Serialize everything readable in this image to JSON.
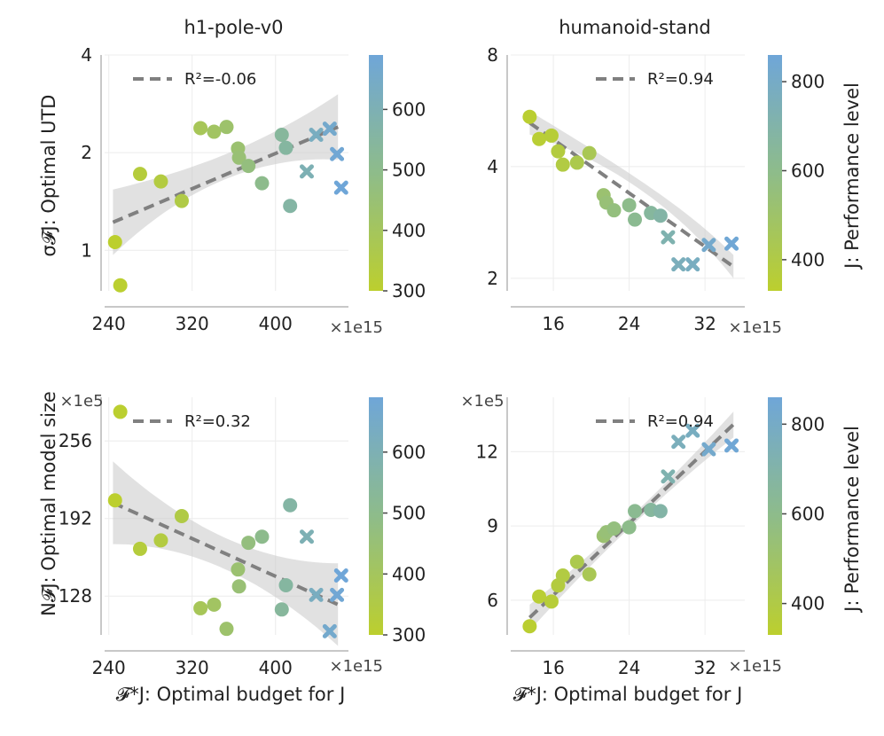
{
  "colors": {
    "low": "#bccf2e",
    "mid": "#8ebc8a",
    "high": "#6fa6d8",
    "fit": "#808080",
    "band": "#c8c8c8",
    "grid": "#ececec",
    "axis": "#c8c8c8"
  },
  "labels": {
    "xlabel": "𝓕*J: Optimal budget for J",
    "ylabel_top": "σ𝓕J: Optimal UTD",
    "ylabel_bottom": "N𝓕J: Optimal model size",
    "cbar_label": "J: Performance level",
    "x_multiplier": "×1e15",
    "y_multiplier": "×1e5"
  },
  "chart_data": [
    {
      "title": "h1-pole-v0",
      "type": "scatter",
      "yscale": "log",
      "xlim": [
        236,
        470
      ],
      "ylim": [
        0.75,
        4
      ],
      "xticks": [
        240,
        320,
        400
      ],
      "yticks": [
        1,
        2,
        4
      ],
      "fit": {
        "label": "R²=-0.06",
        "start": [
          244,
          1.22
        ],
        "end": [
          460,
          2.4
        ]
      },
      "colorbar": {
        "range": [
          300,
          690
        ],
        "ticks": [
          300,
          400,
          500,
          600
        ]
      },
      "points": [
        {
          "x": 246,
          "y": 1.06,
          "perf": 300,
          "marker": "circle"
        },
        {
          "x": 251,
          "y": 0.78,
          "perf": 305,
          "marker": "circle"
        },
        {
          "x": 270,
          "y": 1.72,
          "perf": 330,
          "marker": "circle"
        },
        {
          "x": 290,
          "y": 1.63,
          "perf": 340,
          "marker": "circle"
        },
        {
          "x": 310,
          "y": 1.42,
          "perf": 350,
          "marker": "circle"
        },
        {
          "x": 328,
          "y": 2.38,
          "perf": 390,
          "marker": "circle"
        },
        {
          "x": 341,
          "y": 2.32,
          "perf": 410,
          "marker": "circle"
        },
        {
          "x": 353,
          "y": 2.4,
          "perf": 430,
          "marker": "circle"
        },
        {
          "x": 364,
          "y": 2.06,
          "perf": 440,
          "marker": "circle"
        },
        {
          "x": 365,
          "y": 1.93,
          "perf": 450,
          "marker": "circle"
        },
        {
          "x": 374,
          "y": 1.82,
          "perf": 470,
          "marker": "circle"
        },
        {
          "x": 387,
          "y": 1.61,
          "perf": 500,
          "marker": "circle"
        },
        {
          "x": 406,
          "y": 2.27,
          "perf": 540,
          "marker": "circle"
        },
        {
          "x": 410,
          "y": 2.07,
          "perf": 550,
          "marker": "circle"
        },
        {
          "x": 414,
          "y": 1.37,
          "perf": 560,
          "marker": "circle"
        },
        {
          "x": 430,
          "y": 1.75,
          "perf": 600,
          "marker": "cross"
        },
        {
          "x": 439,
          "y": 2.27,
          "perf": 630,
          "marker": "cross"
        },
        {
          "x": 452,
          "y": 2.37,
          "perf": 660,
          "marker": "cross"
        },
        {
          "x": 459,
          "y": 1.98,
          "perf": 680,
          "marker": "cross"
        },
        {
          "x": 463,
          "y": 1.56,
          "perf": 690,
          "marker": "cross"
        }
      ]
    },
    {
      "title": "humanoid-stand",
      "type": "scatter",
      "yscale": "log",
      "xlim": [
        11.5,
        36.2
      ],
      "ylim": [
        1.85,
        8
      ],
      "xticks": [
        16,
        24,
        32
      ],
      "yticks": [
        2,
        4,
        8
      ],
      "fit": {
        "label": "R²=0.94",
        "start": [
          13.5,
          5.25
        ],
        "end": [
          35,
          2.15
        ]
      },
      "colorbar": {
        "range": [
          330,
          860
        ],
        "ticks": [
          400,
          600,
          800
        ]
      },
      "points": [
        {
          "x": 13.5,
          "y": 5.45,
          "perf": 340,
          "marker": "circle"
        },
        {
          "x": 14.5,
          "y": 4.75,
          "perf": 350,
          "marker": "circle"
        },
        {
          "x": 15.8,
          "y": 4.85,
          "perf": 360,
          "marker": "circle"
        },
        {
          "x": 16.5,
          "y": 4.4,
          "perf": 380,
          "marker": "circle"
        },
        {
          "x": 17.0,
          "y": 4.05,
          "perf": 390,
          "marker": "circle"
        },
        {
          "x": 18.5,
          "y": 4.1,
          "perf": 420,
          "marker": "circle"
        },
        {
          "x": 19.8,
          "y": 4.35,
          "perf": 440,
          "marker": "circle"
        },
        {
          "x": 21.3,
          "y": 3.35,
          "perf": 520,
          "marker": "circle"
        },
        {
          "x": 21.6,
          "y": 3.2,
          "perf": 540,
          "marker": "circle"
        },
        {
          "x": 22.4,
          "y": 3.05,
          "perf": 560,
          "marker": "circle"
        },
        {
          "x": 24.0,
          "y": 3.15,
          "perf": 600,
          "marker": "circle"
        },
        {
          "x": 24.6,
          "y": 2.88,
          "perf": 620,
          "marker": "circle"
        },
        {
          "x": 26.3,
          "y": 3.0,
          "perf": 660,
          "marker": "circle"
        },
        {
          "x": 27.3,
          "y": 2.95,
          "perf": 690,
          "marker": "circle"
        },
        {
          "x": 28.1,
          "y": 2.58,
          "perf": 720,
          "marker": "cross"
        },
        {
          "x": 29.2,
          "y": 2.18,
          "perf": 760,
          "marker": "cross"
        },
        {
          "x": 30.7,
          "y": 2.18,
          "perf": 780,
          "marker": "cross"
        },
        {
          "x": 32.4,
          "y": 2.46,
          "perf": 820,
          "marker": "cross"
        },
        {
          "x": 34.8,
          "y": 2.48,
          "perf": 850,
          "marker": "cross"
        }
      ]
    },
    {
      "title": "",
      "type": "scatter",
      "yscale": "linear",
      "xlim": [
        236,
        470
      ],
      "ylim": [
        96,
        292
      ],
      "xticks": [
        240,
        320,
        400
      ],
      "yticks": [
        128,
        192,
        256
      ],
      "fit": {
        "label": "R²=0.32",
        "start": [
          244,
          205
        ],
        "end": [
          460,
          121
        ]
      },
      "colorbar": {
        "range": [
          300,
          690
        ],
        "ticks": [
          300,
          400,
          500,
          600
        ]
      },
      "points": [
        {
          "x": 246,
          "y": 207,
          "perf": 300,
          "marker": "circle"
        },
        {
          "x": 251,
          "y": 280,
          "perf": 305,
          "marker": "circle"
        },
        {
          "x": 270,
          "y": 167,
          "perf": 330,
          "marker": "circle"
        },
        {
          "x": 290,
          "y": 174,
          "perf": 340,
          "marker": "circle"
        },
        {
          "x": 310,
          "y": 194,
          "perf": 350,
          "marker": "circle"
        },
        {
          "x": 328,
          "y": 118,
          "perf": 390,
          "marker": "circle"
        },
        {
          "x": 341,
          "y": 121,
          "perf": 410,
          "marker": "circle"
        },
        {
          "x": 353,
          "y": 101,
          "perf": 430,
          "marker": "circle"
        },
        {
          "x": 364,
          "y": 150,
          "perf": 440,
          "marker": "circle"
        },
        {
          "x": 365,
          "y": 136,
          "perf": 450,
          "marker": "circle"
        },
        {
          "x": 374,
          "y": 172,
          "perf": 470,
          "marker": "circle"
        },
        {
          "x": 387,
          "y": 177,
          "perf": 500,
          "marker": "circle"
        },
        {
          "x": 406,
          "y": 117,
          "perf": 540,
          "marker": "circle"
        },
        {
          "x": 410,
          "y": 137,
          "perf": 550,
          "marker": "circle"
        },
        {
          "x": 414,
          "y": 203,
          "perf": 560,
          "marker": "circle"
        },
        {
          "x": 430,
          "y": 177,
          "perf": 600,
          "marker": "cross"
        },
        {
          "x": 439,
          "y": 129,
          "perf": 630,
          "marker": "cross"
        },
        {
          "x": 452,
          "y": 99,
          "perf": 660,
          "marker": "cross"
        },
        {
          "x": 459,
          "y": 129,
          "perf": 680,
          "marker": "cross"
        },
        {
          "x": 463,
          "y": 145,
          "perf": 690,
          "marker": "cross"
        }
      ]
    },
    {
      "title": "",
      "type": "scatter",
      "yscale": "linear",
      "xlim": [
        11.5,
        36.2
      ],
      "ylim": [
        4.6,
        14.2
      ],
      "xticks": [
        16,
        24,
        32
      ],
      "yticks": [
        6,
        9,
        12
      ],
      "fit": {
        "label": "R²=0.94",
        "start": [
          13.5,
          5.3
        ],
        "end": [
          35,
          13.1
        ]
      },
      "colorbar": {
        "range": [
          330,
          860
        ],
        "ticks": [
          400,
          600,
          800
        ]
      },
      "points": [
        {
          "x": 13.5,
          "y": 4.95,
          "perf": 340,
          "marker": "circle"
        },
        {
          "x": 14.5,
          "y": 6.15,
          "perf": 350,
          "marker": "circle"
        },
        {
          "x": 15.8,
          "y": 5.95,
          "perf": 360,
          "marker": "circle"
        },
        {
          "x": 16.5,
          "y": 6.6,
          "perf": 380,
          "marker": "circle"
        },
        {
          "x": 17.0,
          "y": 7.0,
          "perf": 390,
          "marker": "circle"
        },
        {
          "x": 18.5,
          "y": 7.55,
          "perf": 420,
          "marker": "circle"
        },
        {
          "x": 19.8,
          "y": 7.05,
          "perf": 440,
          "marker": "circle"
        },
        {
          "x": 21.3,
          "y": 8.6,
          "perf": 520,
          "marker": "circle"
        },
        {
          "x": 21.6,
          "y": 8.75,
          "perf": 540,
          "marker": "circle"
        },
        {
          "x": 22.4,
          "y": 8.9,
          "perf": 560,
          "marker": "circle"
        },
        {
          "x": 24.0,
          "y": 8.95,
          "perf": 600,
          "marker": "circle"
        },
        {
          "x": 24.6,
          "y": 9.6,
          "perf": 620,
          "marker": "circle"
        },
        {
          "x": 26.3,
          "y": 9.65,
          "perf": 660,
          "marker": "circle"
        },
        {
          "x": 27.3,
          "y": 9.6,
          "perf": 690,
          "marker": "circle"
        },
        {
          "x": 28.1,
          "y": 11.0,
          "perf": 720,
          "marker": "cross"
        },
        {
          "x": 29.2,
          "y": 12.4,
          "perf": 760,
          "marker": "cross"
        },
        {
          "x": 30.7,
          "y": 12.85,
          "perf": 780,
          "marker": "cross"
        },
        {
          "x": 32.4,
          "y": 12.1,
          "perf": 820,
          "marker": "cross"
        },
        {
          "x": 34.8,
          "y": 12.25,
          "perf": 850,
          "marker": "cross"
        }
      ]
    }
  ]
}
